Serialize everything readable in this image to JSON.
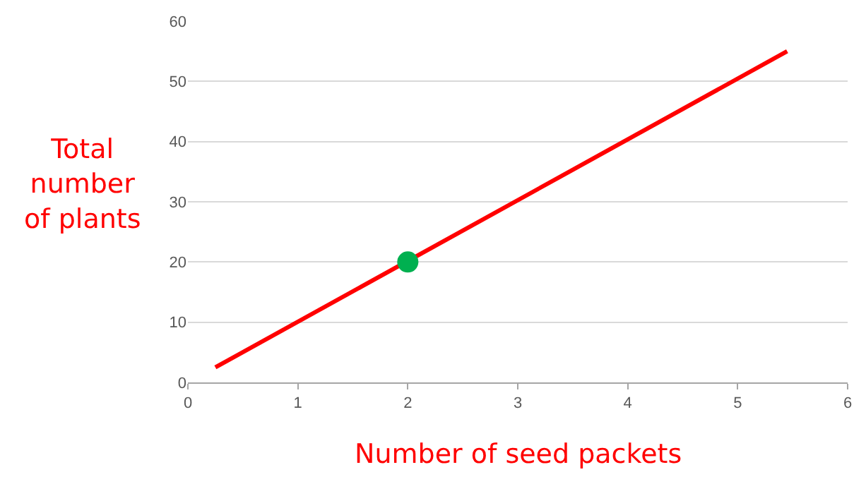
{
  "chart_data": {
    "type": "line",
    "xlabel": "Number of seed packets",
    "ylabel": "Total number of plants",
    "series": [
      {
        "type": "line",
        "color": "#ff0000",
        "x": [
          0.25,
          5.45
        ],
        "values": [
          2.5,
          55
        ],
        "marker": "none"
      },
      {
        "type": "scatter",
        "color": "#00b050",
        "x": [
          2
        ],
        "values": [
          20
        ],
        "marker": "circle"
      }
    ],
    "xlim": [
      0,
      6
    ],
    "xticks": [
      0,
      1,
      2,
      3,
      4,
      5,
      6
    ],
    "ylim": [
      0,
      60
    ],
    "yticks": [
      0,
      10,
      20,
      30,
      40,
      50,
      60
    ],
    "grid": "y"
  }
}
